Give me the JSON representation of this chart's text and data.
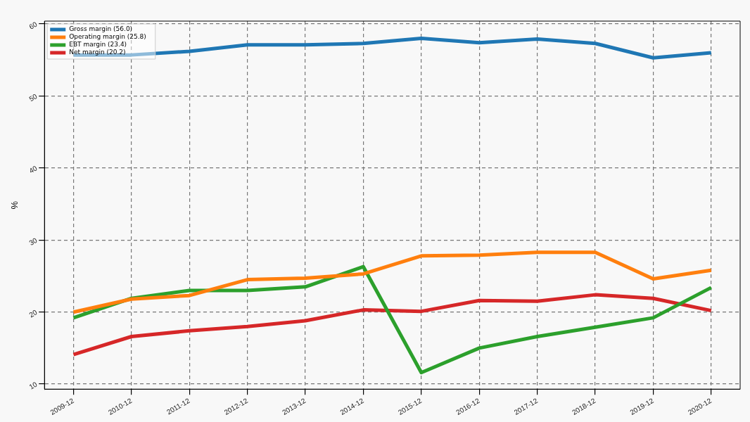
{
  "chart_data": {
    "type": "line",
    "ylabel": "%",
    "categories": [
      "2009-12",
      "2010-12",
      "2011-12",
      "2012-12",
      "2013-12",
      "2014-12",
      "2015-12",
      "2016-12",
      "2017-12",
      "2018-12",
      "2019-12",
      "2020-12"
    ],
    "series": [
      {
        "name": "Gross margin (56.0)",
        "color": "#1f77b4",
        "values": [
          55.7,
          55.7,
          56.2,
          57.1,
          57.1,
          57.3,
          58.0,
          57.4,
          57.9,
          57.3,
          55.3,
          56.0
        ]
      },
      {
        "name": "Operating margin (25.8)",
        "color": "#ff7f0e",
        "values": [
          20.0,
          21.8,
          22.3,
          24.5,
          24.7,
          25.3,
          27.8,
          27.9,
          28.3,
          28.3,
          24.6,
          25.8
        ]
      },
      {
        "name": "EBT margin (23.4)",
        "color": "#2ca02c",
        "values": [
          19.2,
          21.9,
          23.0,
          23.0,
          23.5,
          26.3,
          11.6,
          15.0,
          16.6,
          17.9,
          19.2,
          23.4
        ]
      },
      {
        "name": "Net margin (20.2)",
        "color": "#d62728",
        "values": [
          14.1,
          16.6,
          17.4,
          18.0,
          18.8,
          20.3,
          20.1,
          21.6,
          21.5,
          22.4,
          21.9,
          20.2
        ]
      }
    ],
    "ylim": [
      9.3,
      60.4
    ],
    "yticks": [
      10,
      20,
      30,
      40,
      50,
      60
    ],
    "grid": true,
    "legend": "top left",
    "marker": "none",
    "line_style": "solid"
  }
}
